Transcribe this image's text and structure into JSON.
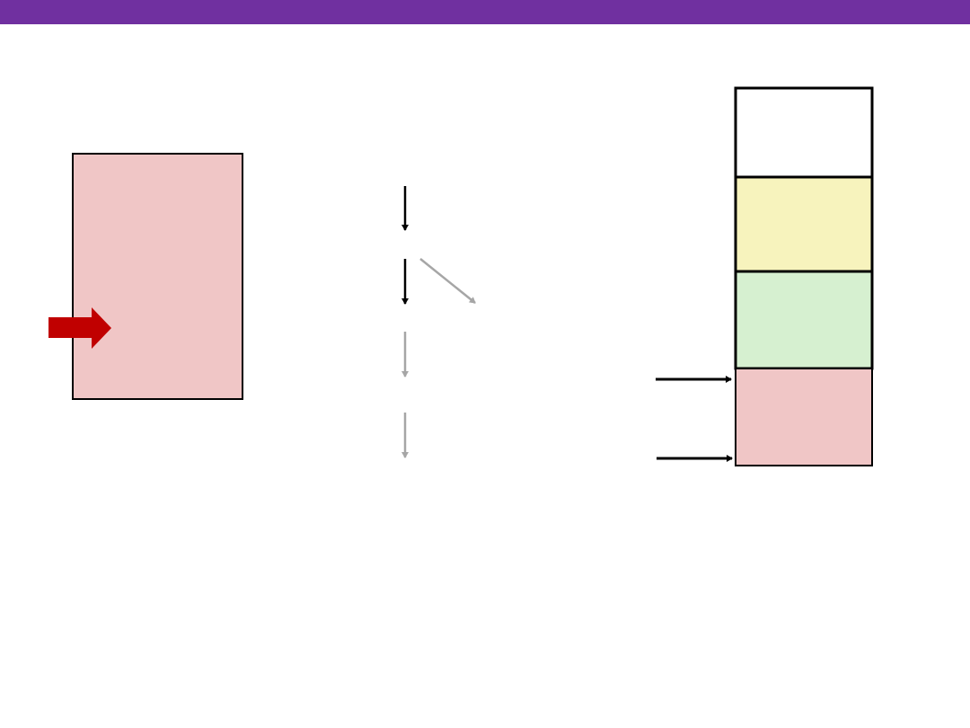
{
  "colors": {
    "header_bar": "#7030a0",
    "code_block_fill": "#f0c6c6",
    "pointer_arrow": "#c00000",
    "stack_top_fill": "#ffffff",
    "stack_yellow_fill": "#f7f3bd",
    "stack_green_fill": "#d6f0d0",
    "stack_pink_fill": "#f0c6c6",
    "active_arrow": "#000000",
    "inactive_arrow": "#a6a6a6"
  }
}
